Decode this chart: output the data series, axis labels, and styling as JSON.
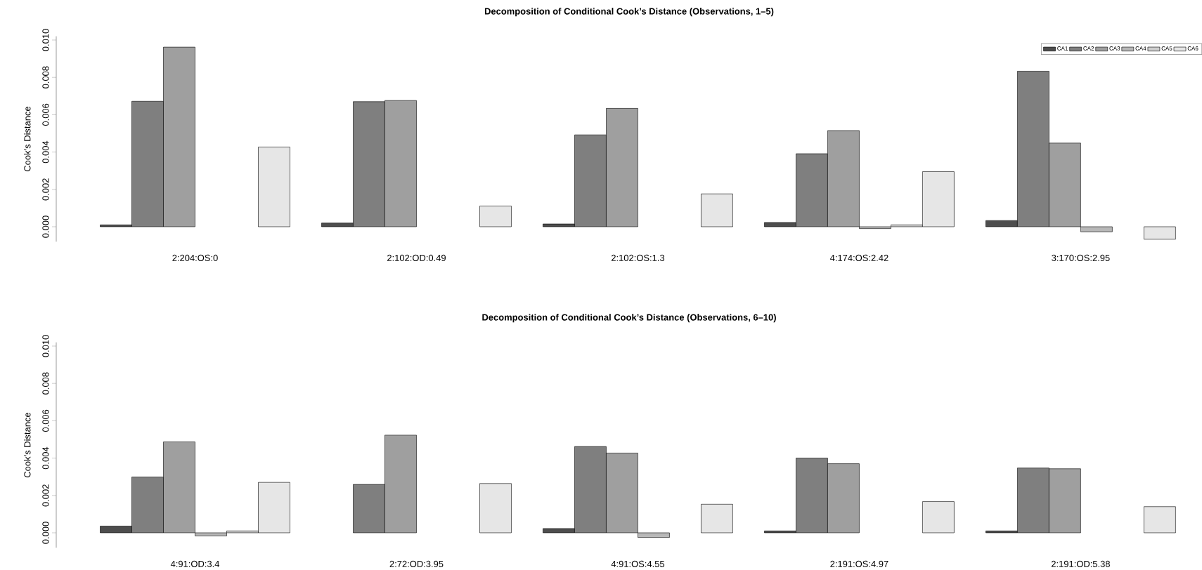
{
  "chart_data": [
    {
      "type": "bar",
      "title": "Decomposition of Conditional Cook’s Distance (Observations, 1–5)",
      "ylabel": "Cook’s Distance",
      "categories": [
        "2:204:OS:0",
        "2:102:OD:0.49",
        "2:102:OS:1.3",
        "4:174:OS:2.42",
        "3:170:OS:2.95"
      ],
      "series": [
        {
          "name": "CA1",
          "color": "#4d4d4d",
          "values": [
            0.0001,
            0.0002,
            0.00015,
            0.00023,
            0.00033
          ]
        },
        {
          "name": "CA2",
          "color": "#7f7f7f",
          "values": [
            0.00672,
            0.0067,
            0.00492,
            0.00391,
            0.00833
          ]
        },
        {
          "name": "CA3",
          "color": "#9f9f9f",
          "values": [
            0.00962,
            0.00676,
            0.00634,
            0.00515,
            0.00448
          ]
        },
        {
          "name": "CA4",
          "color": "#b8b8b8",
          "values": [
            0,
            0,
            0,
            -0.0001,
            -0.00027
          ]
        },
        {
          "name": "CA5",
          "color": "#cfcfcf",
          "values": [
            0,
            0,
            0,
            0.0001,
            0
          ]
        },
        {
          "name": "CA6",
          "color": "#e6e6e6",
          "values": [
            0.00427,
            0.00111,
            0.00176,
            0.00295,
            -0.00067
          ]
        }
      ],
      "ylim": [
        -0.0008,
        0.0102
      ],
      "yticks": [
        {
          "value": 0,
          "label": "0.000"
        },
        {
          "value": 0.002,
          "label": "0.002"
        },
        {
          "value": 0.004,
          "label": "0.004"
        },
        {
          "value": 0.006,
          "label": "0.006"
        },
        {
          "value": 0.008,
          "label": "0.008"
        },
        {
          "value": 0.01,
          "label": "0.010"
        }
      ],
      "legend": "top right",
      "grid": false
    },
    {
      "type": "bar",
      "title": "Decomposition of Conditional Cook’s Distance (Observations, 6–10)",
      "ylabel": "Cook’s Distance",
      "categories": [
        "4:91:OD:3.4",
        "2:72:OD:3.95",
        "4:91:OS:4.55",
        "2:191:OS:4.97",
        "2:191:OD:5.38"
      ],
      "series": [
        {
          "color": "#4d4d4d",
          "values": [
            0.00036,
            0,
            0.00023,
            0.0001,
            0.0001
          ]
        },
        {
          "color": "#7f7f7f",
          "values": [
            0.00299,
            0.00259,
            0.00462,
            0.004,
            0.00347
          ]
        },
        {
          "color": "#9f9f9f",
          "values": [
            0.00487,
            0.00523,
            0.00427,
            0.0037,
            0.00343
          ]
        },
        {
          "color": "#b8b8b8",
          "values": [
            -0.00017,
            0,
            -0.00025,
            0,
            0
          ]
        },
        {
          "color": "#cfcfcf",
          "values": [
            0.0001,
            0,
            0,
            0,
            0
          ]
        },
        {
          "color": "#e6e6e6",
          "values": [
            0.0027,
            0.00264,
            0.00153,
            0.00167,
            0.0014
          ]
        }
      ],
      "ylim": [
        -0.0008,
        0.0102
      ],
      "yticks": [
        {
          "value": 0,
          "label": "0.000"
        },
        {
          "value": 0.002,
          "label": "0.002"
        },
        {
          "value": 0.004,
          "label": "0.004"
        },
        {
          "value": 0.006,
          "label": "0.006"
        },
        {
          "value": 0.008,
          "label": "0.008"
        },
        {
          "value": 0.01,
          "label": "0.010"
        }
      ],
      "grid": false
    }
  ]
}
